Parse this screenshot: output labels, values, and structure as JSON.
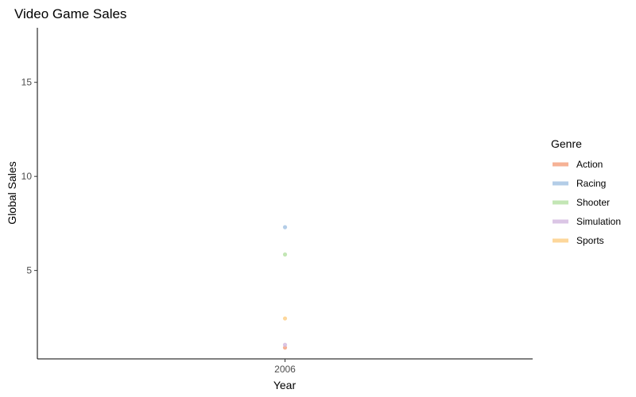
{
  "chart_data": {
    "type": "scatter",
    "title": "Video Game Sales",
    "xlabel": "Year",
    "ylabel": "Global Sales",
    "x_categories": [
      "2006"
    ],
    "ylim": [
      0.3,
      17.9
    ],
    "yticks": [
      5,
      10,
      15
    ],
    "grid": false,
    "legend": {
      "title": "Genre",
      "position": "right"
    },
    "series": [
      {
        "name": "Action",
        "color": "#F4A582",
        "points": [
          {
            "x": "2006",
            "y": 0.9
          }
        ]
      },
      {
        "name": "Racing",
        "color": "#A6C4E3",
        "points": [
          {
            "x": "2006",
            "y": 7.3
          }
        ]
      },
      {
        "name": "Shooter",
        "color": "#B8E2A8",
        "points": [
          {
            "x": "2006",
            "y": 5.85
          }
        ]
      },
      {
        "name": "Simulation",
        "color": "#D5BCE0",
        "points": [
          {
            "x": "2006",
            "y": 1.05
          }
        ]
      },
      {
        "name": "Sports",
        "color": "#FDD08A",
        "points": [
          {
            "x": "2006",
            "y": 2.45
          }
        ]
      }
    ]
  }
}
